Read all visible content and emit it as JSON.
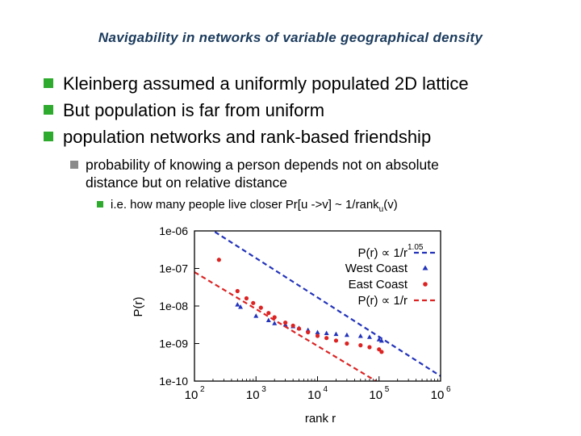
{
  "slide": {
    "title": "Navigability in networks of variable geographical density",
    "bullets": [
      "Kleinberg assumed a uniformly populated 2D lattice",
      "But population is far from uniform",
      "population networks and rank-based friendship"
    ],
    "sub_bullet": {
      "line1": "probability of knowing a person depends not on absolute",
      "line2": "distance but on relative distance"
    },
    "sub_sub_bullet": {
      "text": "i.e. how many people live closer  Pr[u ->v] ~ 1/rank",
      "subscript": "u",
      "suffix": "(v)"
    },
    "colors": {
      "title": "#1a3a5c",
      "bullet_level1": "#2eaa2e",
      "bullet_level2": "#8a8a8a",
      "bullet_level3": "#2eaa2e"
    }
  },
  "chart_data": {
    "type": "scatter",
    "xlabel": "rank r",
    "ylabel": "P(r)",
    "x_scale": "log",
    "y_scale": "log",
    "xlim": [
      100,
      1000000
    ],
    "ylim": [
      1e-10,
      1e-06
    ],
    "x_ticks": [
      {
        "value": 100,
        "base": "10",
        "exp": "2"
      },
      {
        "value": 1000,
        "base": "10",
        "exp": "3"
      },
      {
        "value": 10000,
        "base": "10",
        "exp": "4"
      },
      {
        "value": 100000,
        "base": "10",
        "exp": "5"
      },
      {
        "value": 1000000,
        "base": "10",
        "exp": "6"
      }
    ],
    "y_ticks": [
      {
        "value": 1e-06,
        "label": "1e-06"
      },
      {
        "value": 1e-07,
        "label": "1e-07"
      },
      {
        "value": 1e-08,
        "label": "1e-08"
      },
      {
        "value": 1e-09,
        "label": "1e-09"
      },
      {
        "value": 1e-10,
        "label": "1e-10"
      }
    ],
    "legend_position": "top-right",
    "series": [
      {
        "name": "P(r) ∝ 1/r",
        "name_sup": "1.05",
        "kind": "dashed-line",
        "color": "#2233bb",
        "x": [
          100,
          1000000
        ],
        "y": [
          2.1e-06,
          1.36e-10
        ]
      },
      {
        "name": "West Coast",
        "kind": "triangle",
        "color": "#2233bb",
        "x": [
          500,
          560,
          1000,
          1600,
          2000,
          3000,
          4000,
          5000,
          7000,
          10000,
          14000,
          20000,
          30000,
          50000,
          70000,
          100000,
          110000
        ],
        "y": [
          1.1e-08,
          9.5e-09,
          5.5e-09,
          4.2e-09,
          3.5e-09,
          3.2e-09,
          2.9e-09,
          2.6e-09,
          2.3e-09,
          2e-09,
          1.9e-09,
          1.8e-09,
          1.7e-09,
          1.6e-09,
          1.5e-09,
          1.3e-09,
          1.2e-09
        ]
      },
      {
        "name": "East Coast",
        "kind": "circle",
        "color": "#dd2222",
        "x": [
          250,
          500,
          700,
          900,
          1200,
          1600,
          2000,
          3000,
          4000,
          5000,
          7000,
          10000,
          14000,
          20000,
          30000,
          50000,
          70000,
          100000,
          110000
        ],
        "y": [
          1.7e-07,
          2.5e-08,
          1.6e-08,
          1.2e-08,
          9e-09,
          6.5e-09,
          5e-09,
          3.6e-09,
          3e-09,
          2.5e-09,
          2e-09,
          1.6e-09,
          1.4e-09,
          1.2e-09,
          1e-09,
          9e-10,
          8e-10,
          7e-10,
          6e-10
        ]
      },
      {
        "name": "P(r) ∝ 1/r",
        "kind": "dashed-line",
        "color": "#dd2222",
        "x": [
          100,
          150000
        ],
        "y": [
          8e-08,
          6e-11
        ]
      }
    ]
  }
}
